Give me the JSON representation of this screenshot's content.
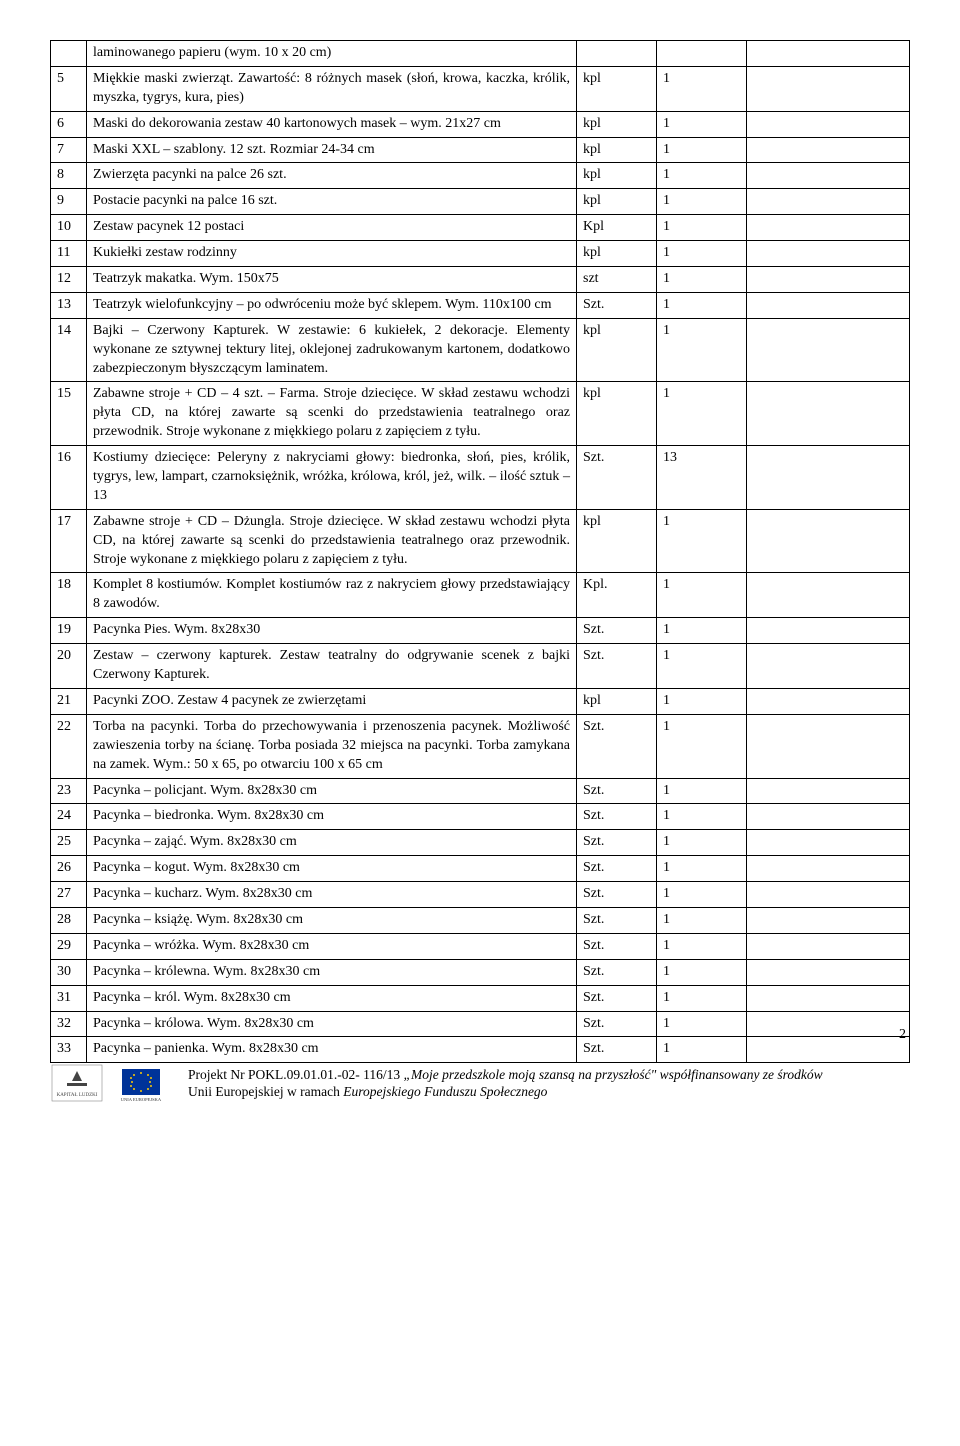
{
  "rows": [
    {
      "num": "",
      "desc": "laminowanego papieru (wym. 10 x 20 cm)",
      "unit": "",
      "qty": "",
      "extra": ""
    },
    {
      "num": "5",
      "desc": "Miękkie maski zwierząt. Zawartość: 8 różnych masek (słoń, krowa, kaczka, królik, myszka, tygrys, kura, pies)",
      "unit": "kpl",
      "qty": "1",
      "extra": ""
    },
    {
      "num": "6",
      "desc": "Maski do dekorowania zestaw 40 kartonowych masek – wym. 21x27 cm",
      "unit": "kpl",
      "qty": "1",
      "extra": ""
    },
    {
      "num": "7",
      "desc": "Maski XXL – szablony. 12 szt. Rozmiar 24-34 cm",
      "unit": "kpl",
      "qty": "1",
      "extra": ""
    },
    {
      "num": "8",
      "desc": "Zwierzęta pacynki na palce 26 szt.",
      "unit": "kpl",
      "qty": "1",
      "extra": ""
    },
    {
      "num": "9",
      "desc": "Postacie pacynki na palce 16 szt.",
      "unit": "kpl",
      "qty": "1",
      "extra": ""
    },
    {
      "num": "10",
      "desc": "Zestaw pacynek 12 postaci",
      "unit": "Kpl",
      "qty": "1",
      "extra": ""
    },
    {
      "num": "11",
      "desc": "Kukiełki zestaw rodzinny",
      "unit": "kpl",
      "qty": "1",
      "extra": ""
    },
    {
      "num": "12",
      "desc": "Teatrzyk makatka. Wym. 150x75",
      "unit": "szt",
      "qty": "1",
      "extra": ""
    },
    {
      "num": "13",
      "desc": "Teatrzyk wielofunkcyjny – po odwróceniu może być sklepem. Wym. 110x100 cm",
      "unit": "Szt.",
      "qty": "1",
      "extra": ""
    },
    {
      "num": "14",
      "desc": "Bajki – Czerwony Kapturek. W zestawie: 6 kukiełek, 2 dekoracje. Elementy wykonane ze sztywnej tektury litej, oklejonej zadrukowanym kartonem, dodatkowo zabezpieczonym błyszczącym laminatem.",
      "unit": "kpl",
      "qty": "1",
      "extra": ""
    },
    {
      "num": "15",
      "desc": "Zabawne stroje + CD – 4 szt. – Farma.  Stroje dziecięce. W skład zestawu wchodzi płyta CD, na której zawarte są scenki do przedstawienia teatralnego oraz przewodnik. Stroje wykonane z miękkiego polaru z zapięciem z tyłu.",
      "unit": "kpl",
      "qty": "1",
      "extra": ""
    },
    {
      "num": "16",
      "desc": "Kostiumy dziecięce: Peleryny z nakryciami głowy: biedronka, słoń, pies, królik, tygrys, lew, lampart, czarnoksiężnik, wróżka, królowa, król, jeż, wilk. – ilość sztuk – 13",
      "unit": "Szt.",
      "qty": "13",
      "extra": ""
    },
    {
      "num": "17",
      "desc": "Zabawne stroje + CD – Dżungla. Stroje dziecięce. W skład zestawu wchodzi płyta CD, na której zawarte są scenki do przedstawienia teatralnego oraz przewodnik. Stroje wykonane z miękkiego polaru z zapięciem z tyłu.",
      "unit": "kpl",
      "qty": "1",
      "extra": ""
    },
    {
      "num": "18",
      "desc": "Komplet 8 kostiumów. Komplet kostiumów raz z nakryciem głowy przedstawiający 8 zawodów.",
      "unit": "Kpl.",
      "qty": "1",
      "extra": ""
    },
    {
      "num": "19",
      "desc": "Pacynka Pies. Wym. 8x28x30",
      "unit": "Szt.",
      "qty": "1",
      "extra": ""
    },
    {
      "num": "20",
      "desc": "Zestaw – czerwony kapturek. Zestaw teatralny do odgrywanie scenek z bajki Czerwony Kapturek.",
      "unit": "Szt.",
      "qty": "1",
      "extra": ""
    },
    {
      "num": "21",
      "desc": "Pacynki ZOO. Zestaw 4 pacynek ze zwierzętami",
      "unit": "kpl",
      "qty": "1",
      "extra": ""
    },
    {
      "num": "22",
      "desc": "Torba na pacynki. Torba do przechowywania i przenoszenia pacynek. Możliwość zawieszenia torby na ścianę. Torba posiada 32 miejsca na pacynki. Torba zamykana na zamek. Wym.: 50 x 65, po otwarciu 100 x 65 cm",
      "unit": "Szt.",
      "qty": "1",
      "extra": ""
    },
    {
      "num": "23",
      "desc": "Pacynka – policjant. Wym. 8x28x30 cm",
      "unit": "Szt.",
      "qty": "1",
      "extra": ""
    },
    {
      "num": "24",
      "desc": "Pacynka – biedronka. Wym. 8x28x30 cm",
      "unit": "Szt.",
      "qty": "1",
      "extra": ""
    },
    {
      "num": "25",
      "desc": "Pacynka – zająć. Wym. 8x28x30 cm",
      "unit": "Szt.",
      "qty": "1",
      "extra": ""
    },
    {
      "num": "26",
      "desc": "Pacynka – kogut. Wym. 8x28x30 cm",
      "unit": "Szt.",
      "qty": "1",
      "extra": ""
    },
    {
      "num": "27",
      "desc": "Pacynka – kucharz. Wym. 8x28x30 cm",
      "unit": "Szt.",
      "qty": "1",
      "extra": ""
    },
    {
      "num": "28",
      "desc": "Pacynka – książę. Wym. 8x28x30 cm",
      "unit": "Szt.",
      "qty": "1",
      "extra": ""
    },
    {
      "num": "29",
      "desc": "Pacynka – wróżka. Wym. 8x28x30 cm",
      "unit": "Szt.",
      "qty": "1",
      "extra": ""
    },
    {
      "num": "30",
      "desc": "Pacynka – królewna. Wym. 8x28x30 cm",
      "unit": "Szt.",
      "qty": "1",
      "extra": ""
    },
    {
      "num": "31",
      "desc": "Pacynka – król. Wym. 8x28x30 cm",
      "unit": "Szt.",
      "qty": "1",
      "extra": ""
    },
    {
      "num": "32",
      "desc": "Pacynka – królowa. Wym. 8x28x30 cm",
      "unit": "Szt.",
      "qty": "1",
      "extra": ""
    },
    {
      "num": "33",
      "desc": "Pacynka – panienka. Wym. 8x28x30 cm",
      "unit": "Szt.",
      "qty": "1",
      "extra": ""
    }
  ],
  "footer": {
    "line1_prefix": "Projekt Nr POKL.09.01.01.-02- 116/13 ",
    "line1_italic": "„Moje przedszkole moją szansą na przyszłość\" współfinansowany ze środków",
    "line2": "Unii Europejskiej w ramach ",
    "line2_italic": "Europejskiego Funduszu Społecznego"
  },
  "page_number": "2"
}
